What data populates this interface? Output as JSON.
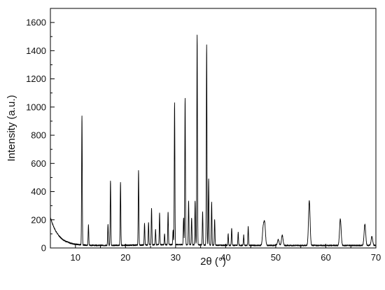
{
  "chart_data": {
    "type": "line",
    "title": "",
    "xlabel": "2θ (°)",
    "ylabel": "Intensity (a.u.)",
    "xlim": [
      5,
      70
    ],
    "ylim": [
      0,
      1700
    ],
    "x_ticks": [
      10,
      20,
      30,
      40,
      50,
      60,
      70
    ],
    "x_tick_labels": [
      "10",
      "20",
      "30",
      "40",
      "50",
      "60",
      "70"
    ],
    "y_ticks": [
      0,
      200,
      400,
      600,
      800,
      1000,
      1200,
      1400,
      1600
    ],
    "y_tick_labels": [
      "0",
      "200",
      "400",
      "600",
      "800",
      "1000",
      "1200",
      "1400",
      "1600"
    ],
    "grid": false,
    "legend": "none",
    "series": [
      {
        "color": "#000000",
        "peaks_x": [
          11.3,
          12.6,
          16.5,
          17.0,
          19.0,
          22.6,
          23.8,
          24.6,
          25.2,
          26.0,
          26.8,
          27.8,
          28.5,
          29.5,
          29.8,
          31.6,
          31.9,
          32.6,
          33.2,
          33.9,
          34.3,
          35.4,
          36.2,
          36.6,
          37.2,
          37.8,
          40.5,
          41.2,
          42.5,
          43.6,
          44.5,
          47.5,
          47.8,
          50.5,
          51.3,
          56.7,
          62.9,
          67.8,
          69.2
        ],
        "peaks_y": [
          935,
          160,
          165,
          475,
          465,
          545,
          170,
          180,
          280,
          125,
          240,
          90,
          250,
          120,
          1025,
          210,
          1060,
          330,
          210,
          330,
          1505,
          250,
          1440,
          490,
          320,
          200,
          100,
          140,
          110,
          90,
          150,
          140,
          165,
          60,
          90,
          335,
          205,
          170,
          80
        ]
      }
    ]
  }
}
